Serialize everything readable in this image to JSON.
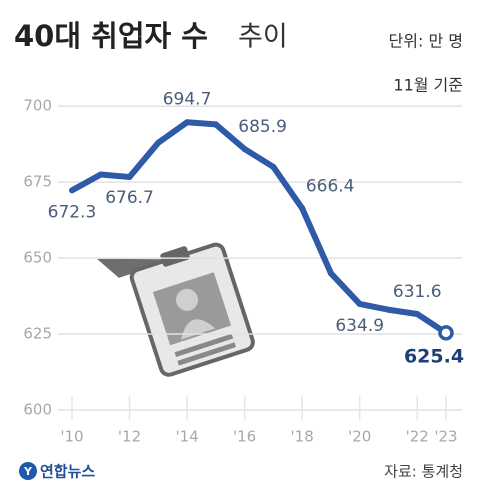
{
  "chart_data": {
    "type": "line",
    "title": "40대 취업자 수",
    "title_suffix": "추이",
    "unit": "단위: 만 명",
    "note": "11월 기준",
    "source": "자료: 통계청",
    "logo": "연합뉴스",
    "categories": [
      "'10",
      null,
      "'12",
      null,
      "'14",
      null,
      "'16",
      null,
      "'18",
      null,
      "'20",
      null,
      "'22",
      "'23"
    ],
    "values": [
      672.3,
      677.5,
      676.7,
      688,
      694.7,
      694,
      685.9,
      680,
      666.4,
      645,
      634.9,
      633,
      631.6,
      625.4
    ],
    "value_labels": [
      "672.3",
      null,
      "676.7",
      null,
      "694.7",
      null,
      "685.9",
      null,
      "666.4",
      null,
      "634.9",
      null,
      "631.6",
      "625.4"
    ],
    "color": "#2f5aa8",
    "ylim": [
      600,
      705
    ],
    "yticks": [
      600,
      625,
      650,
      675,
      700
    ],
    "grid": true
  }
}
